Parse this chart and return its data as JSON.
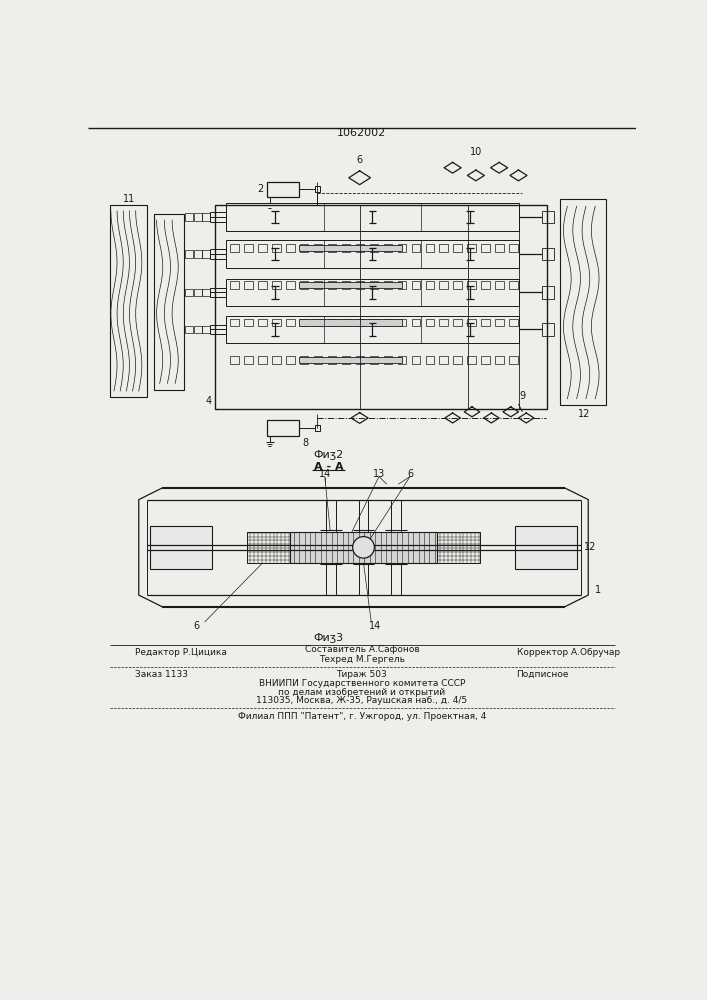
{
  "title": "1062002",
  "bg_color": "#f0eeea",
  "line_color": "#1a1a1a",
  "fig2_caption": "Фиʒ2",
  "fig2_section": "А - А",
  "fig3_caption": "Фиʒ3",
  "label_2": "2",
  "label_4": "4",
  "label_6": "6",
  "label_8": "8",
  "label_9": "9",
  "label_10": "10",
  "label_11": "11",
  "label_12": "12",
  "label_13": "13",
  "label_14": "14",
  "label_1": "1",
  "footer_editor": "Редактор Р.Цицика",
  "footer_composer": "Составитель А.Сафонов",
  "footer_corrector": "Корректор А.Обручар",
  "footer_techred": "Техред М.Гергель",
  "footer_order": "Заказ 1133",
  "footer_tirazh": "Тираж 503",
  "footer_podp": "Подписное",
  "footer_vnipi1": "ВНИИПИ Государственного комитета СССР",
  "footer_vnipi2": "по делам изобретений и открытий",
  "footer_vnipi3": "113035, Москва, Ж-35, Раушская наб., д. 4/5",
  "footer_filial": "Филиал ППП \"Патент\", г. Ужгород, ул. Проектная, 4"
}
